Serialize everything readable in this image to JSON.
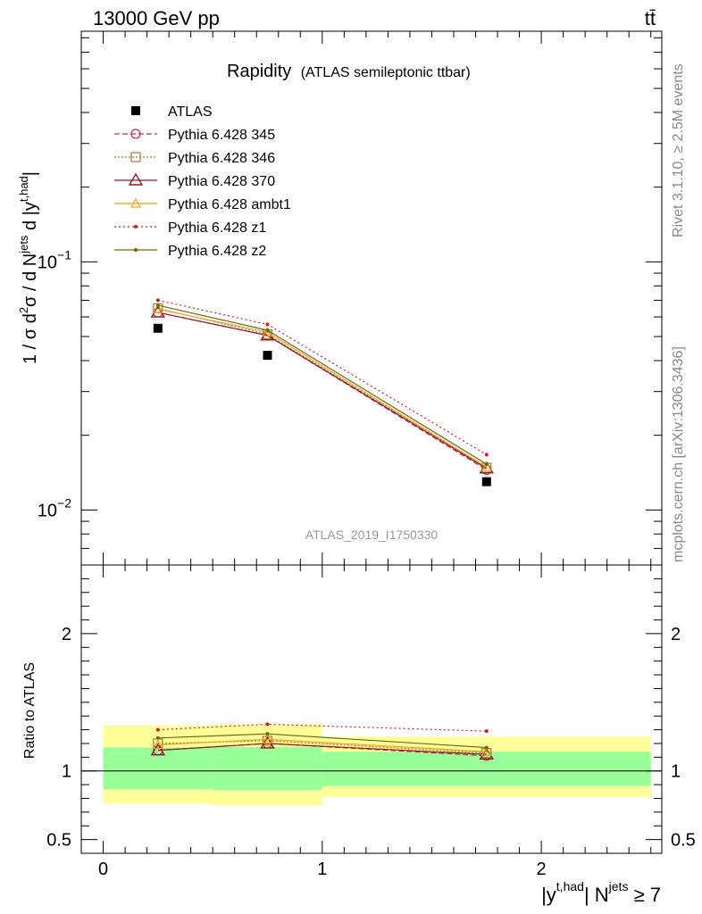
{
  "header": {
    "energy_label": "13000 GeV pp",
    "process_label": "tt̄"
  },
  "plot_title": {
    "main": "Rapidity",
    "sub": "(ATLAS semileptonic ttbar)"
  },
  "side_labels": {
    "rivet": "Rivet 3.1.10, ≥ 2.5M events",
    "mcplots": "mcplots.cern.ch [arXiv:1306.3436]"
  },
  "analysis_id": "ATLAS_2019_I1750330",
  "chart_data": [
    {
      "type": "line",
      "panel": "main",
      "yscale": "log",
      "ylabel": "1 / σ d²σ / d N^jets d |y^t,had|",
      "ylim": [
        0.006,
        0.85
      ],
      "xlim": [
        -0.1,
        2.55
      ],
      "yticks_labeled": [
        {
          "value": 0.1,
          "base": "10",
          "exp": "−1"
        },
        {
          "value": 0.01,
          "base": "10",
          "exp": "−2"
        }
      ],
      "x": [
        0.25,
        0.75,
        1.75
      ],
      "series": [
        {
          "name": "ATLAS",
          "values": [
            0.054,
            0.042,
            0.013
          ],
          "color": "#000000",
          "marker": "square"
        },
        {
          "name": "Pythia 6.428 345",
          "values": [
            0.0625,
            0.0505,
            0.0145
          ],
          "color": "#c0304a",
          "marker": "circle",
          "dash": "6,3"
        },
        {
          "name": "Pythia 6.428 346",
          "values": [
            0.065,
            0.051,
            0.0148
          ],
          "color": "#a07840",
          "marker": "square-open",
          "dash": "2,2"
        },
        {
          "name": "Pythia 6.428 370",
          "values": [
            0.0625,
            0.0505,
            0.0147
          ],
          "color": "#8b1a2a",
          "marker": "triangle"
        },
        {
          "name": "Pythia 6.428 ambt1",
          "values": [
            0.0645,
            0.052,
            0.0149
          ],
          "color": "#f0a020",
          "marker": "triangle-small"
        },
        {
          "name": "Pythia 6.428 z1",
          "values": [
            0.07,
            0.056,
            0.0167
          ],
          "color": "#d42020",
          "marker": "dot",
          "dash": "2,3"
        },
        {
          "name": "Pythia 6.428 z2",
          "values": [
            0.0668,
            0.053,
            0.0153
          ],
          "color": "#6b6b10",
          "marker": "dot"
        }
      ]
    },
    {
      "type": "line",
      "panel": "ratio",
      "ylabel": "Ratio to ATLAS",
      "xlabel": "|y^t,had| N^jets ≥ 7",
      "ylim": [
        0.4,
        2.5
      ],
      "yticks": [
        0.5,
        1,
        2
      ],
      "ytick_labels": [
        "0.5",
        "1",
        "2"
      ],
      "xticks": [
        0,
        1,
        2
      ],
      "xtick_labels": [
        "0",
        "1",
        "2"
      ],
      "bands": [
        {
          "x0": 0.0,
          "x1": 0.5,
          "green": [
            0.865,
            1.17
          ],
          "yellow": [
            0.76,
            1.33
          ]
        },
        {
          "x0": 0.5,
          "x1": 1.0,
          "green": [
            0.86,
            1.175
          ],
          "yellow": [
            0.75,
            1.34
          ]
        },
        {
          "x0": 1.0,
          "x1": 2.5,
          "green": [
            0.89,
            1.14
          ],
          "yellow": [
            0.81,
            1.25
          ]
        }
      ],
      "x": [
        0.25,
        0.75,
        1.75
      ],
      "series": [
        {
          "name": "Pythia 6.428 345",
          "values": [
            1.15,
            1.2,
            1.11
          ]
        },
        {
          "name": "Pythia 6.428 346",
          "values": [
            1.2,
            1.22,
            1.13
          ]
        },
        {
          "name": "Pythia 6.428 370",
          "values": [
            1.15,
            1.2,
            1.12
          ]
        },
        {
          "name": "Pythia 6.428 ambt1",
          "values": [
            1.19,
            1.23,
            1.14
          ]
        },
        {
          "name": "Pythia 6.428 z1",
          "values": [
            1.3,
            1.34,
            1.29
          ]
        },
        {
          "name": "Pythia 6.428 z2",
          "values": [
            1.24,
            1.27,
            1.17
          ]
        }
      ]
    }
  ]
}
